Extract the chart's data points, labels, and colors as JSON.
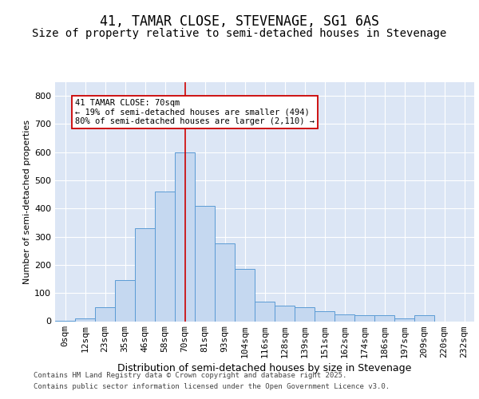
{
  "title": "41, TAMAR CLOSE, STEVENAGE, SG1 6AS",
  "subtitle": "Size of property relative to semi-detached houses in Stevenage",
  "xlabel": "Distribution of semi-detached houses by size in Stevenage",
  "ylabel": "Number of semi-detached properties",
  "footer_line1": "Contains HM Land Registry data © Crown copyright and database right 2025.",
  "footer_line2": "Contains public sector information licensed under the Open Government Licence v3.0.",
  "annotation_title": "41 TAMAR CLOSE: 70sqm",
  "annotation_line1": "← 19% of semi-detached houses are smaller (494)",
  "annotation_line2": "80% of semi-detached houses are larger (2,110) →",
  "categories": [
    "0sqm",
    "12sqm",
    "23sqm",
    "35sqm",
    "46sqm",
    "58sqm",
    "70sqm",
    "81sqm",
    "93sqm",
    "104sqm",
    "116sqm",
    "128sqm",
    "139sqm",
    "151sqm",
    "162sqm",
    "174sqm",
    "186sqm",
    "197sqm",
    "209sqm",
    "220sqm",
    "232sqm"
  ],
  "values": [
    2,
    10,
    50,
    145,
    330,
    460,
    600,
    410,
    275,
    185,
    70,
    55,
    50,
    35,
    25,
    20,
    20,
    10,
    20,
    0,
    0
  ],
  "bar_color": "#c5d8f0",
  "bar_edge_color": "#5b9bd5",
  "marker_line_color": "#cc0000",
  "annotation_box_color": "#cc0000",
  "plot_bg_color": "#dce6f5",
  "fig_bg_color": "#ffffff",
  "ylim": [
    0,
    850
  ],
  "yticks": [
    0,
    100,
    200,
    300,
    400,
    500,
    600,
    700,
    800
  ],
  "title_fontsize": 12,
  "subtitle_fontsize": 10,
  "xlabel_fontsize": 9,
  "ylabel_fontsize": 8,
  "tick_fontsize": 8,
  "annotation_fontsize": 7.5,
  "footer_fontsize": 6.5
}
